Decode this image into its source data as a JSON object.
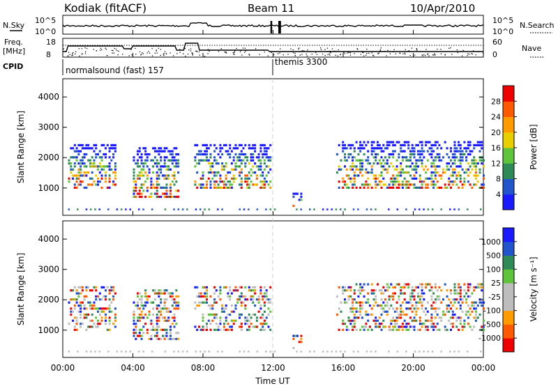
{
  "header": {
    "station": "Kodiak (fitACF)",
    "beam": "Beam 11",
    "date": "10/Apr/2010"
  },
  "summary_panel": {
    "nsky_label": "N.Sky",
    "freq_label": "Freq.",
    "freq_unit": "[MHz]",
    "cpid_label": "CPID",
    "nsearch_label": "N.Search",
    "nave_label": "Nave",
    "left_ticks_top": [
      "10^5",
      "10^0"
    ],
    "right_ticks_top": [
      "10^5",
      "10^0"
    ],
    "left_ticks_freq": [
      "18",
      "8"
    ],
    "right_ticks_nave": [
      "60",
      "0"
    ],
    "cpid_segments": [
      {
        "label": "normalsound (fast) 157",
        "start_hour": 0
      },
      {
        "label": "themis 3300",
        "start_hour": 12
      }
    ]
  },
  "power_panel": {
    "ylabel": "Slant Range [km]",
    "yticks": [
      "1000",
      "2000",
      "3000",
      "4000"
    ],
    "colorbar_label": "Power [dB]",
    "colorbar_ticks": [
      "4",
      "8",
      "12",
      "16",
      "20",
      "24",
      "28"
    ],
    "colors": [
      "#1a1aff",
      "#2255cc",
      "#2e8b57",
      "#5ec43c",
      "#e8d000",
      "#ff9a00",
      "#ff5a00",
      "#ee0000"
    ]
  },
  "velocity_panel": {
    "ylabel": "Slant Range [km]",
    "yticks": [
      "1000",
      "2000",
      "3000",
      "4000"
    ],
    "colorbar_label": "Velocity [m s⁻¹]",
    "colorbar_ticks": [
      "-1000",
      "-500",
      "-100",
      "-25",
      "25",
      "100",
      "500",
      "1000"
    ],
    "colors": [
      "#ee0000",
      "#ff5a00",
      "#ff9a00",
      "#bdbdbd",
      "#bdbdbd",
      "#5ec43c",
      "#2e8b57",
      "#2255cc",
      "#1a1aff"
    ]
  },
  "xaxis": {
    "label": "Time UT",
    "ticks": [
      "00:00",
      "04:00",
      "08:00",
      "12:00",
      "16:00",
      "20:00",
      "00:00"
    ]
  },
  "chart_data": {
    "type": "heatmap",
    "title": "Kodiak (fitACF)  Beam 11  10/Apr/2010",
    "xlabel": "Time UT",
    "ylabel": "Slant Range [km]",
    "xlim_hours": [
      0,
      24
    ],
    "ylim_km": [
      100,
      4600
    ],
    "grid": false,
    "panels": [
      {
        "name": "Power",
        "unit": "dB",
        "scale": [
          0,
          30
        ]
      },
      {
        "name": "Velocity",
        "unit": "m s-1",
        "scale": [
          -1000,
          1000
        ]
      }
    ],
    "echo_bands": [
      {
        "t0": 0.3,
        "t1": 3.0,
        "r0": 1000,
        "r1": 2400
      },
      {
        "t0": 4.0,
        "t1": 6.6,
        "r0": 700,
        "r1": 2300
      },
      {
        "t0": 7.5,
        "t1": 11.8,
        "r0": 1000,
        "r1": 2400
      },
      {
        "t0": 13.0,
        "t1": 13.6,
        "r0": 400,
        "r1": 800
      },
      {
        "t0": 15.6,
        "t1": 24.0,
        "r0": 1000,
        "r1": 2500
      }
    ]
  }
}
